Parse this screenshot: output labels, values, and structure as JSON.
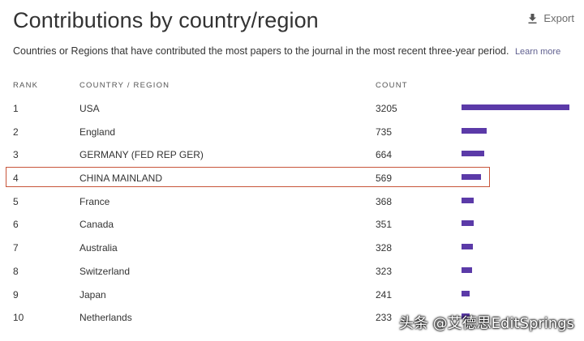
{
  "title": "Contributions by country/region",
  "export_label": "Export",
  "export_icon": "download-icon",
  "subtitle": "Countries or Regions that have contributed the most papers to the journal in the most recent three-year period.",
  "learn_more": "Learn more",
  "headers": {
    "rank": "RANK",
    "country": "COUNTRY / REGION",
    "count": "COUNT"
  },
  "bar_color": "#5b3aa8",
  "highlight_color": "#c8553a",
  "highlighted_rank": "4",
  "rows": [
    {
      "rank": "1",
      "country": "USA",
      "count": "3205"
    },
    {
      "rank": "2",
      "country": "England",
      "count": "735"
    },
    {
      "rank": "3",
      "country": "GERMANY (FED REP GER)",
      "count": "664"
    },
    {
      "rank": "4",
      "country": "CHINA MAINLAND",
      "count": "569"
    },
    {
      "rank": "5",
      "country": "France",
      "count": "368"
    },
    {
      "rank": "6",
      "country": "Canada",
      "count": "351"
    },
    {
      "rank": "7",
      "country": "Australia",
      "count": "328"
    },
    {
      "rank": "8",
      "country": "Switzerland",
      "count": "323"
    },
    {
      "rank": "9",
      "country": "Japan",
      "count": "241"
    },
    {
      "rank": "10",
      "country": "Netherlands",
      "count": "233"
    }
  ],
  "watermark": "头条 @艾德思EditSprings"
}
